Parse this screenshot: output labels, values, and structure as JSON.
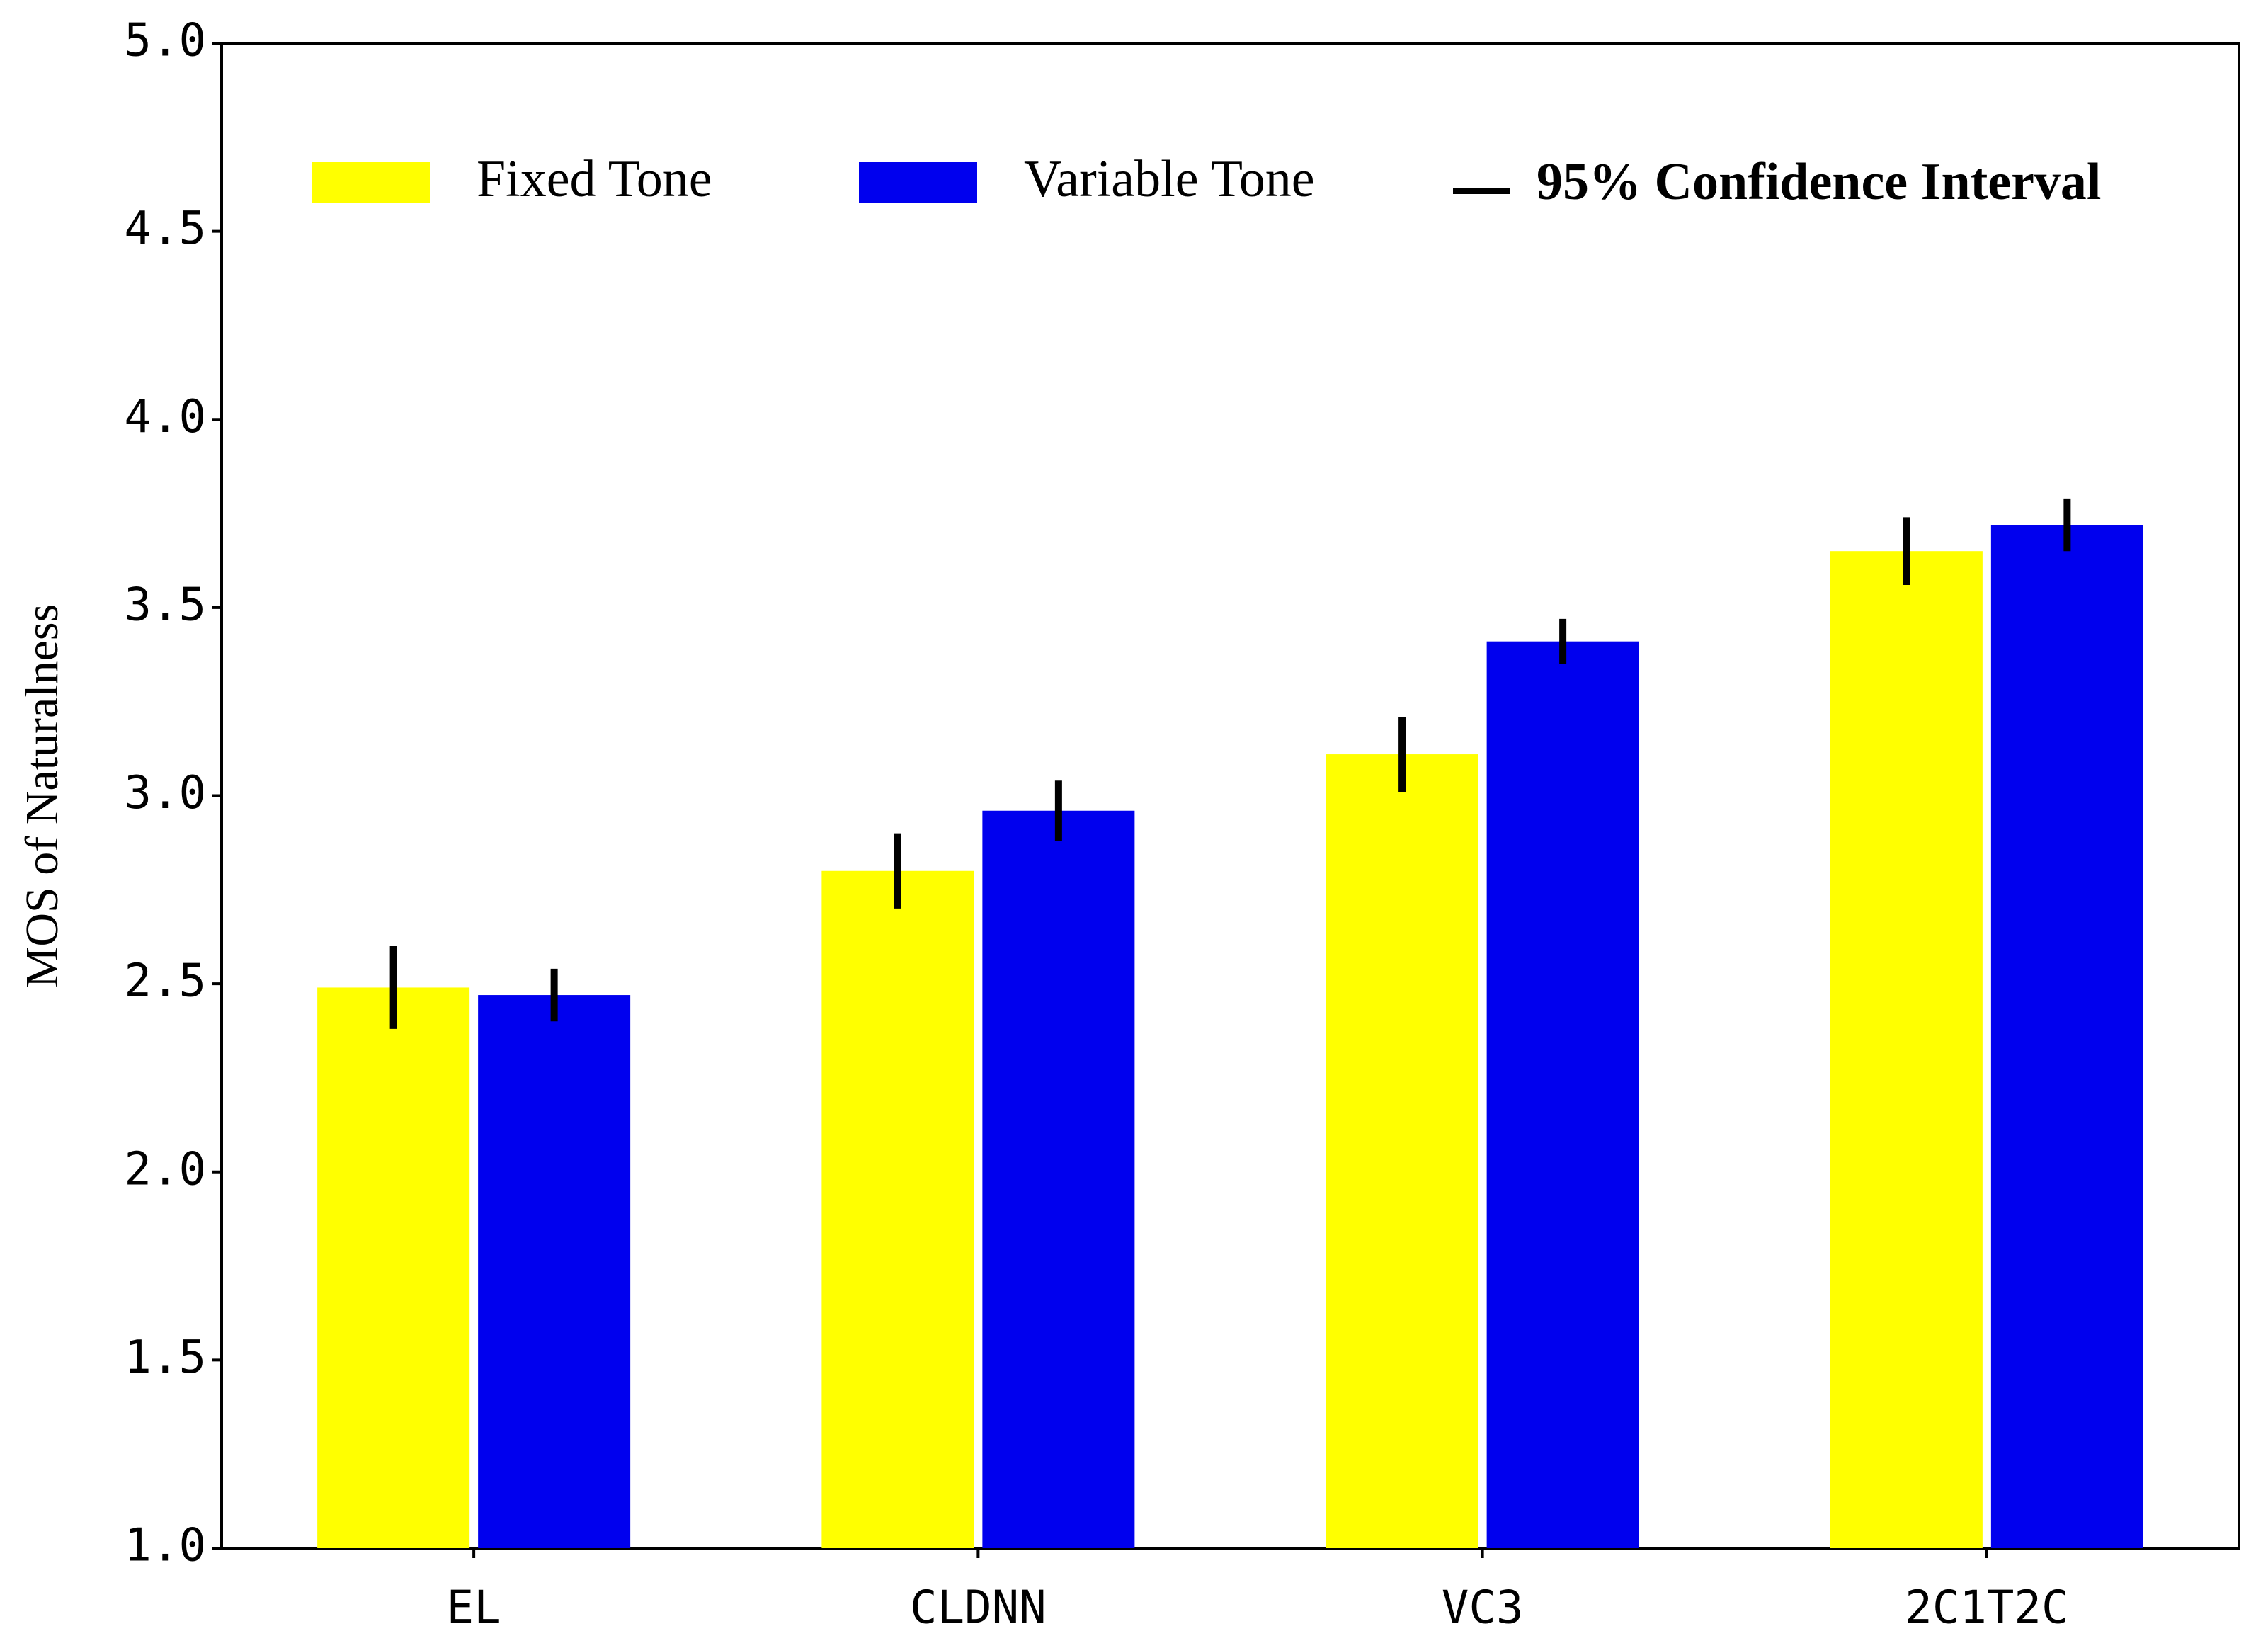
{
  "chart_data": {
    "type": "bar",
    "ylabel": "MOS of Naturalness",
    "categories": [
      "EL",
      "CLDNN",
      "VC3",
      "2C1T2C"
    ],
    "series": [
      {
        "name": "Fixed Tone",
        "color": "#ffff00",
        "values": [
          2.49,
          2.8,
          3.11,
          3.65
        ],
        "errors": [
          0.11,
          0.1,
          0.1,
          0.09
        ]
      },
      {
        "name": "Variable Tone",
        "color": "#0000ee",
        "values": [
          2.47,
          2.96,
          3.41,
          3.72
        ],
        "errors": [
          0.07,
          0.08,
          0.06,
          0.07
        ]
      }
    ],
    "error_label": "95% Confidence Interval",
    "error_color": "#000000",
    "ylim": [
      1,
      5
    ],
    "yticks": [
      {
        "value": 1,
        "label": "1.0"
      },
      {
        "value": 1.5,
        "label": "1.5"
      },
      {
        "value": 2,
        "label": "2.0"
      },
      {
        "value": 2.5,
        "label": "2.5"
      },
      {
        "value": 3,
        "label": "3.0"
      },
      {
        "value": 3.5,
        "label": "3.5"
      },
      {
        "value": 4,
        "label": "4.0"
      },
      {
        "value": 4.5,
        "label": "4.5"
      },
      {
        "value": 5,
        "label": "5.0"
      }
    ],
    "grid": false,
    "legend": "top"
  }
}
